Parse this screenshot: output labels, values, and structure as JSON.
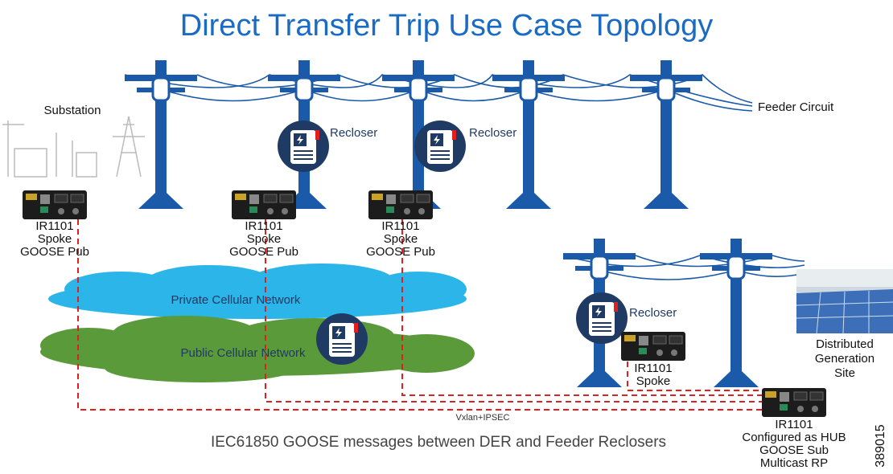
{
  "title": "Direct Transfer Trip Use Case Topology",
  "feeder_circuit": "Feeder Circuit",
  "substation": "Substation",
  "reclosers": [
    "Recloser",
    "Recloser",
    "Recloser"
  ],
  "routers": [
    {
      "lines": [
        "IR1101",
        "Spoke",
        "GOOSE Pub"
      ]
    },
    {
      "lines": [
        "IR1101",
        "Spoke",
        "GOOSE Pub"
      ]
    },
    {
      "lines": [
        "IR1101",
        "Spoke",
        "GOOSE Pub"
      ]
    },
    {
      "lines": [
        "IR1101",
        "Spoke"
      ]
    },
    {
      "lines": [
        "IR1101",
        "Configured as HUB",
        "GOOSE Sub",
        "Multicast RP"
      ]
    }
  ],
  "clouds": [
    "Private Cellular Network",
    "Public Cellular Network"
  ],
  "der_site": [
    "Distributed",
    "Generation",
    "Site"
  ],
  "link_label": "Vxlan+IPSEC",
  "caption": "IEC61850 GOOSE messages between DER and Feeder Reclosers",
  "figure_id": "389015"
}
